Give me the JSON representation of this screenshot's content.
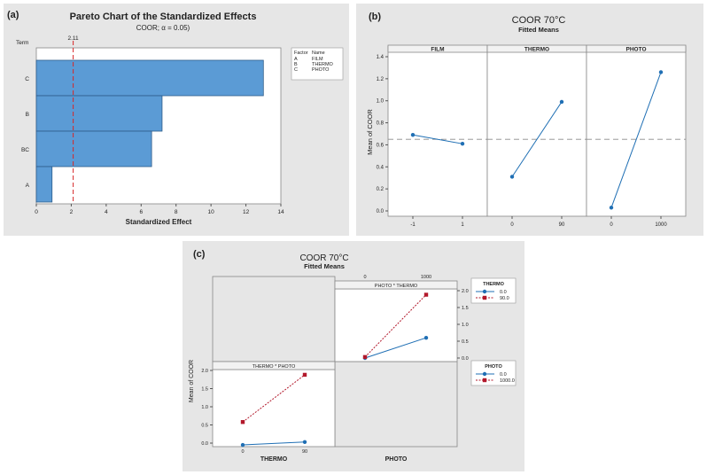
{
  "colors": {
    "panel_bg": "#e6e6e6",
    "bar_fill": "#5b9bd5",
    "bar_stroke": "#2e5c8a",
    "ref_line": "#d62728",
    "series_blue": "#1f6fb4",
    "series_red": "#b2182b",
    "dash_gray": "#8a8a8a"
  },
  "chart_data": [
    {
      "panel_label": "(a)",
      "type": "bar",
      "orientation": "horizontal",
      "title": "Pareto Chart of the Standardized Effects",
      "subtitle": "COOR; α = 0.05)",
      "ylabel": "Term",
      "xlabel": "Standardized Effect",
      "categories": [
        "C",
        "B",
        "BC",
        "A"
      ],
      "values": [
        13.0,
        7.2,
        6.6,
        0.9
      ],
      "xlim": [
        0,
        14
      ],
      "xticks": [
        "0",
        "2",
        "4",
        "6",
        "8",
        "10",
        "12",
        "14"
      ],
      "reference_value": 2.11,
      "reference_label": "2.11",
      "legend": {
        "header": [
          "Factor",
          "Name"
        ],
        "rows": [
          [
            "A",
            "FILM"
          ],
          [
            "B",
            "THERMO"
          ],
          [
            "C",
            "PHOTO"
          ]
        ]
      }
    },
    {
      "panel_label": "(b)",
      "type": "line",
      "title": "COOR 70°C",
      "subtitle": "Fitted Means",
      "ylabel": "Mean of COOR",
      "ylim": [
        0,
        1.4
      ],
      "yticks": [
        "0.0",
        "0.2",
        "0.4",
        "0.6",
        "0.8",
        "1.0",
        "1.2",
        "1.4"
      ],
      "ytick_values": [
        0,
        0.2,
        0.4,
        0.6,
        0.8,
        1.0,
        1.2,
        1.4
      ],
      "overall_mean": 0.65,
      "facets": [
        {
          "name": "FILM",
          "x": [
            "-1",
            "1"
          ],
          "y": [
            0.69,
            0.61
          ]
        },
        {
          "name": "THERMO",
          "x": [
            "0",
            "90"
          ],
          "y": [
            0.31,
            0.99
          ]
        },
        {
          "name": "PHOTO",
          "x": [
            "0",
            "1000"
          ],
          "y": [
            0.03,
            1.26
          ]
        }
      ]
    },
    {
      "panel_label": "(c)",
      "type": "line",
      "title": "COOR 70°C",
      "subtitle": "Fitted Means",
      "ylabel": "Mean of COOR",
      "ylim": [
        0,
        2.0
      ],
      "yticks": [
        "0.0",
        "0.5",
        "1.0",
        "1.5",
        "2.0"
      ],
      "ytick_values": [
        0,
        0.5,
        1.0,
        1.5,
        2.0
      ],
      "interaction_top": {
        "strip": "PHOTO * THERMO",
        "x_ticks": [
          "0",
          "1000"
        ],
        "legend_title": "THERMO",
        "series": [
          {
            "name": "0.0",
            "color": "#1f6fb4",
            "marker": "circle",
            "style": "solid",
            "y": [
              0.0,
              0.6
            ]
          },
          {
            "name": "90.0",
            "color": "#b2182b",
            "marker": "square",
            "style": "dotted",
            "y": [
              0.03,
              1.88
            ]
          }
        ]
      },
      "interaction_bottom": {
        "strip": "THERMO * PHOTO",
        "x_ticks": [
          "0",
          "90"
        ],
        "xlabel": "THERMO",
        "legend_title": "PHOTO",
        "series": [
          {
            "name": "0.0",
            "color": "#1f6fb4",
            "marker": "circle",
            "style": "solid",
            "y": [
              -0.05,
              0.03
            ]
          },
          {
            "name": "1000.0",
            "color": "#b2182b",
            "marker": "square",
            "style": "dotted",
            "y": [
              0.58,
              1.88
            ]
          }
        ]
      },
      "bottom_right_label": "PHOTO"
    }
  ]
}
